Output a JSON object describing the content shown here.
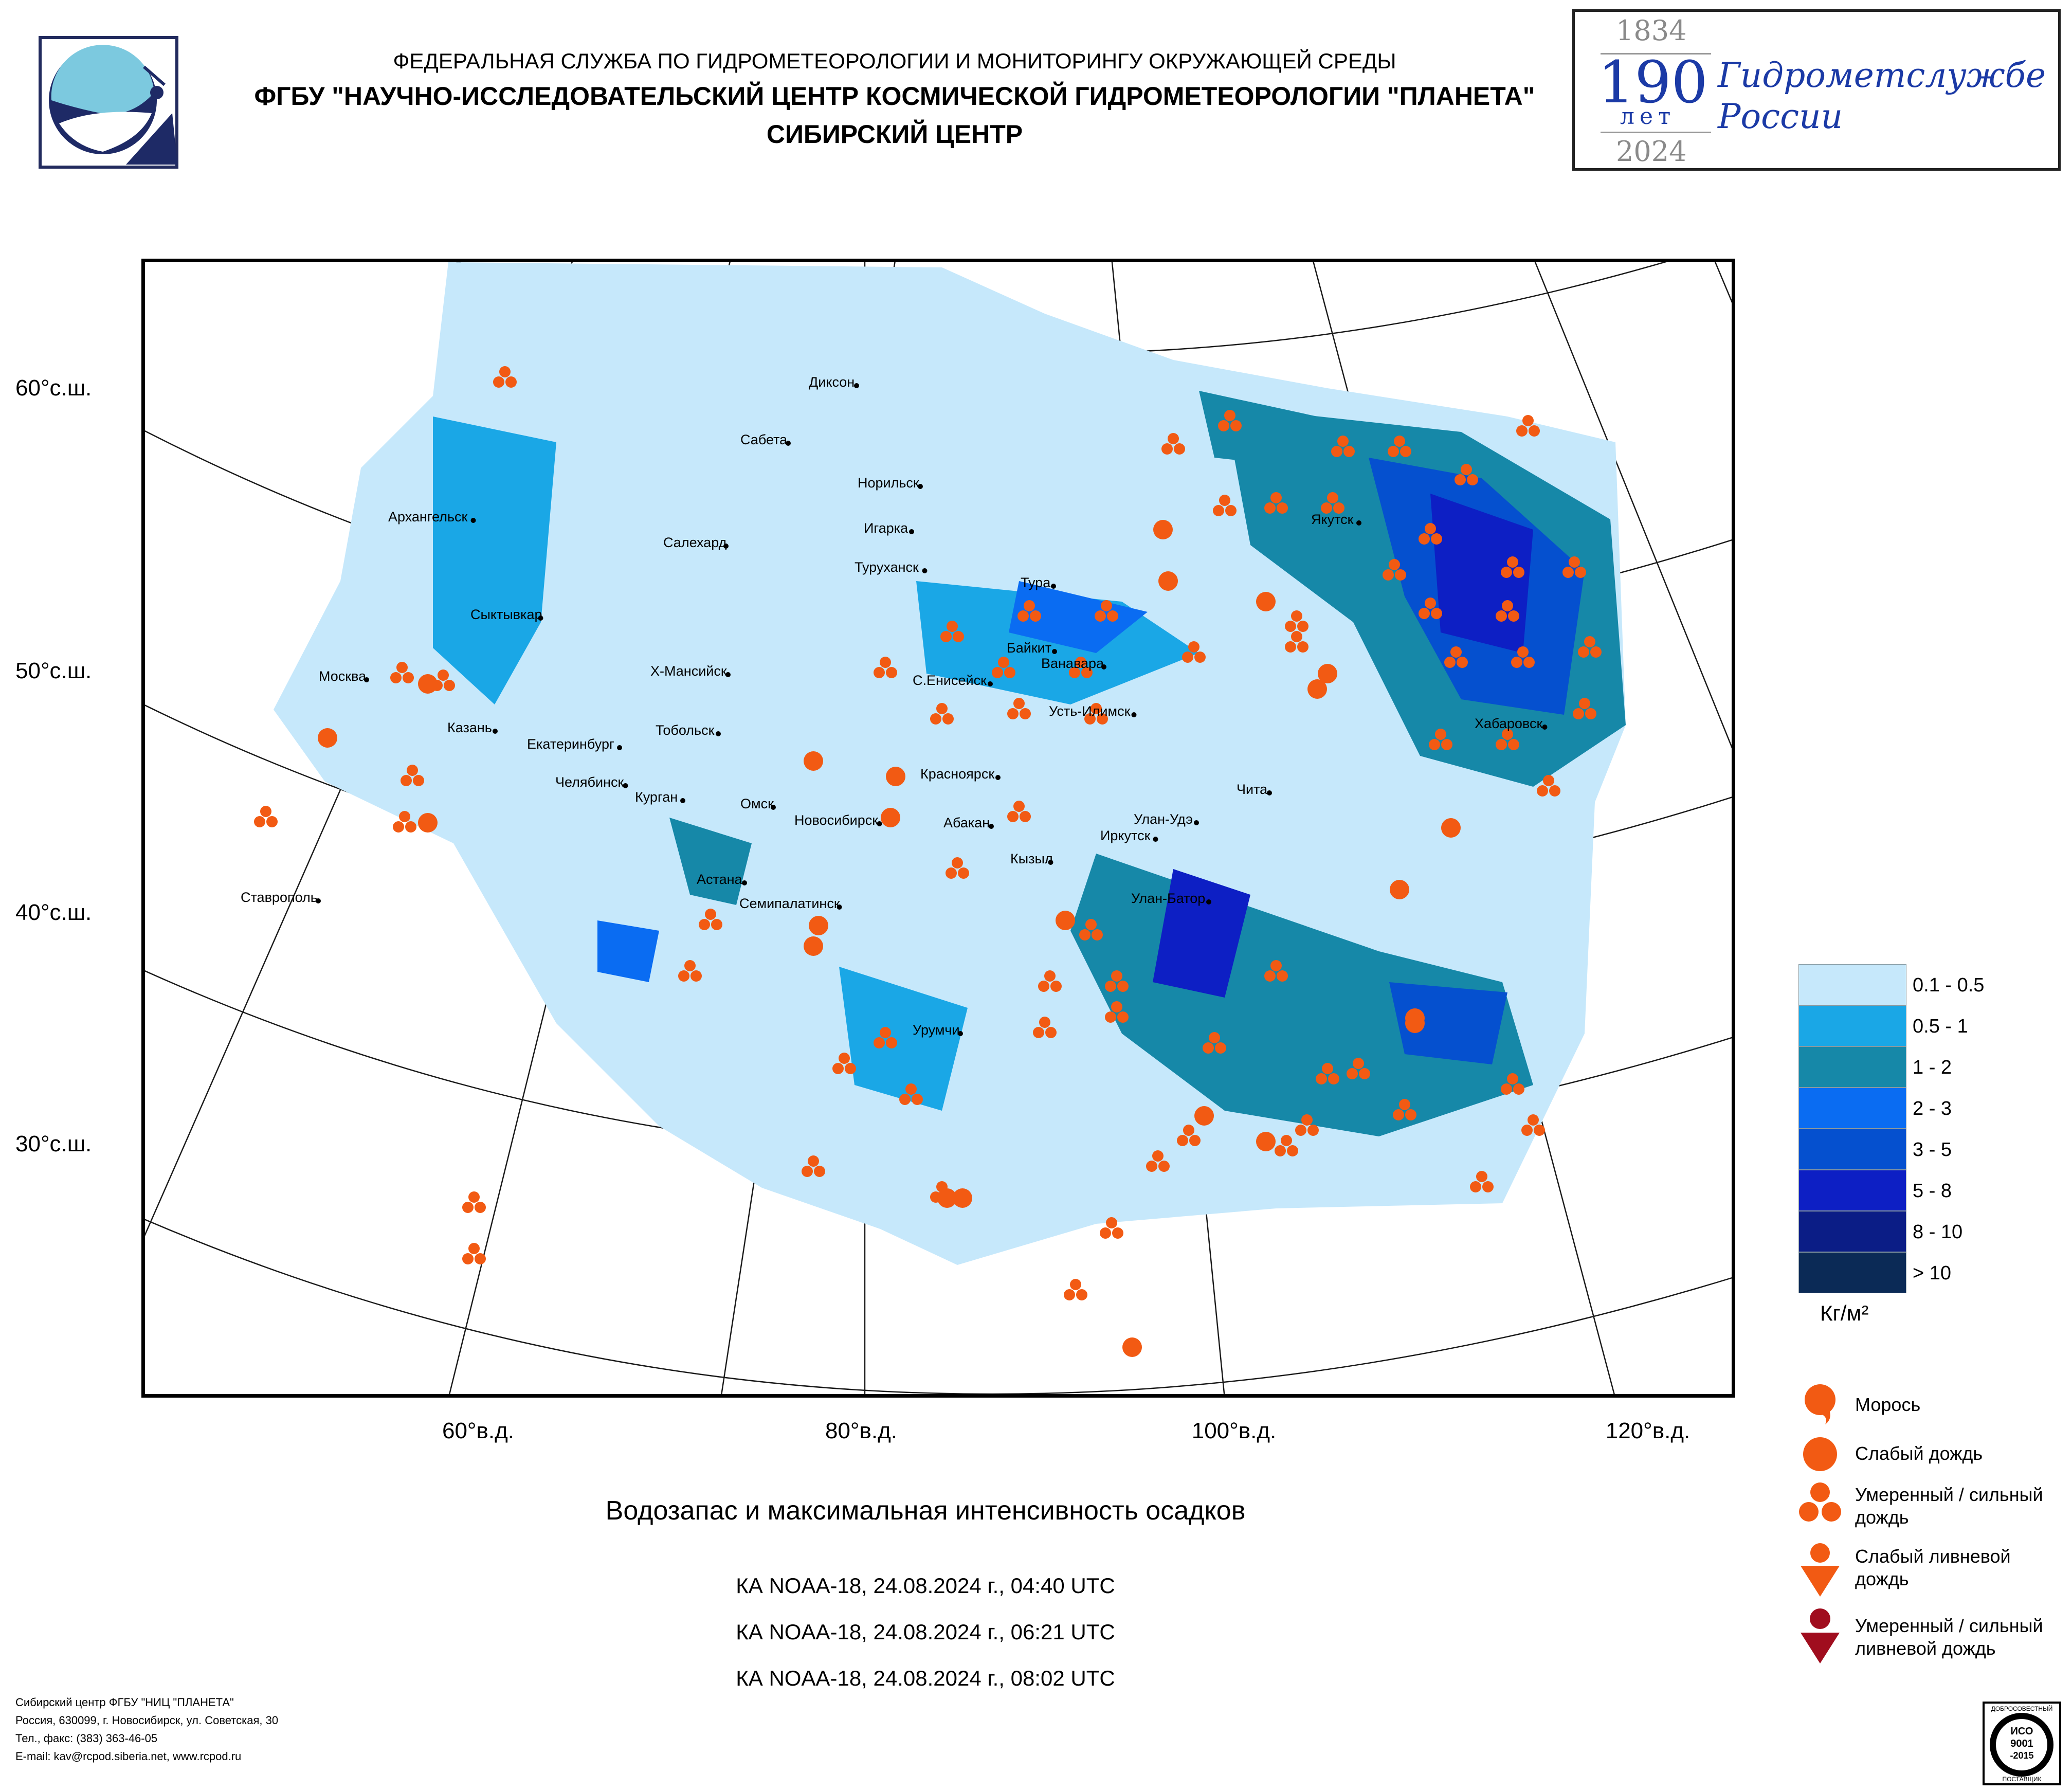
{
  "header": {
    "line1": "ФЕДЕРАЛЬНАЯ СЛУЖБА ПО ГИДРОМЕТЕОРОЛОГИИ И МОНИТОРИНГУ ОКРУЖАЮЩЕЙ СРЕДЫ",
    "line2": "ФГБУ \"НАУЧНО-ИССЛЕДОВАТЕЛЬСКИЙ ЦЕНТР КОСМИЧЕСКОЙ ГИДРОМЕТЕОРОЛОГИИ \"ПЛАНЕТА\"",
    "line3": "СИБИРСКИЙ ЦЕНТР"
  },
  "anniversary": {
    "start_year": "1834",
    "number": "190",
    "years_word": "лет",
    "end_year": "2024",
    "text_line1": "Гидрометслужбе",
    "text_line2": "России"
  },
  "map": {
    "lat_labels": [
      "60°с.ш.",
      "50°с.ш.",
      "40°с.ш.",
      "30°с.ш."
    ],
    "lon_labels": [
      "60°в.д.",
      "80°в.д.",
      "100°в.д.",
      "120°в.д."
    ],
    "cities": [
      {
        "name": "Диксон"
      },
      {
        "name": "Сабета"
      },
      {
        "name": "Норильск"
      },
      {
        "name": "Игарка"
      },
      {
        "name": "Салехард"
      },
      {
        "name": "Архангельск"
      },
      {
        "name": "Туруханск"
      },
      {
        "name": "Тура"
      },
      {
        "name": "Якутск"
      },
      {
        "name": "Сыктывкар"
      },
      {
        "name": "Байкит"
      },
      {
        "name": "Ванавара"
      },
      {
        "name": "Х-Мансийск"
      },
      {
        "name": "С.Енисейск"
      },
      {
        "name": "Москва"
      },
      {
        "name": "Усть-Илимск"
      },
      {
        "name": "Казань"
      },
      {
        "name": "Екатеринбург"
      },
      {
        "name": "Тобольск"
      },
      {
        "name": "Хабаровск"
      },
      {
        "name": "Челябинск"
      },
      {
        "name": "Курган"
      },
      {
        "name": "Красноярск"
      },
      {
        "name": "Чита"
      },
      {
        "name": "Омск"
      },
      {
        "name": "Новосибирск"
      },
      {
        "name": "Абакан"
      },
      {
        "name": "Улан-Удэ"
      },
      {
        "name": "Иркутск"
      },
      {
        "name": "Кызыл"
      },
      {
        "name": "Астана"
      },
      {
        "name": "Ставрополь"
      },
      {
        "name": "Улан-Батор"
      },
      {
        "name": "Семипалатинск"
      },
      {
        "name": "Урумчи"
      }
    ]
  },
  "legend": {
    "scale": [
      {
        "label": "0.1 - 0.5",
        "color": "#c6e8fb"
      },
      {
        "label": "0.5 - 1",
        "color": "#1aa7e6"
      },
      {
        "label": "1 - 2",
        "color": "#1688a8"
      },
      {
        "label": "2 - 3",
        "color": "#0a6cf2"
      },
      {
        "label": "3 - 5",
        "color": "#0550cf"
      },
      {
        "label": "5 - 8",
        "color": "#0d1fc4"
      },
      {
        "label": "8 - 10",
        "color": "#0b1d86"
      },
      {
        "label": "> 10",
        "color": "#0b2a56"
      }
    ],
    "unit": "Кг/м²",
    "symbols": [
      {
        "label": "Морось"
      },
      {
        "label": "Слабый дождь"
      },
      {
        "label": "Умеренный / сильный дождь"
      },
      {
        "label": "Слабый ливневой дождь"
      },
      {
        "label": "Умеренный / сильный ливневой дождь"
      }
    ]
  },
  "title": "Водозапас и максимальная интенсивность осадков",
  "passes": [
    "КА NOAA-18, 24.08.2024 г., 04:40 UTC",
    "КА NOAA-18, 24.08.2024 г., 06:21 UTC",
    "КА NOAA-18, 24.08.2024 г., 08:02 UTC"
  ],
  "footer": {
    "line1": "Сибирский центр ФГБУ \"НИЦ \"ПЛАНЕТА\"",
    "line2": "Россия, 630099, г. Новосибирск, ул. Советская, 30",
    "line3": "Тел., факс: (383) 363-46-05",
    "line4": "E-mail: kav@rcpod.siberia.net, www.rcpod.ru"
  },
  "iso_badge": {
    "top": "ДОБРОСОВЕСТНЫЙ",
    "l1": "ИСО",
    "l2": "9001",
    "l3": "-2015",
    "bottom": "ПОСТАВЩИК"
  }
}
